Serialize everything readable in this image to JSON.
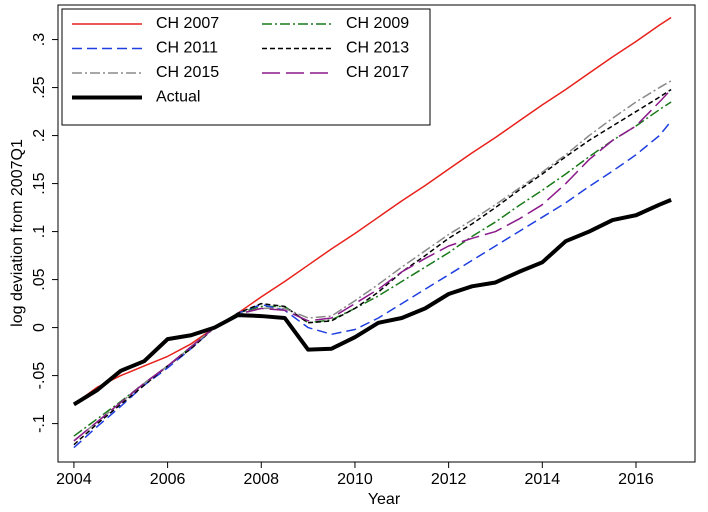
{
  "chart_data": {
    "type": "line",
    "x_label": "Year",
    "y_label": "log deviation from 2007Q1",
    "x": [
      2004,
      2004.5,
      2005,
      2005.5,
      2006,
      2006.5,
      2007,
      2007.5,
      2008,
      2008.5,
      2009,
      2009.5,
      2010,
      2010.5,
      2011,
      2011.5,
      2012,
      2012.5,
      2013,
      2013.5,
      2014,
      2014.5,
      2015,
      2015.5,
      2016,
      2016.5,
      2016.75
    ],
    "xlim": [
      2003.66,
      2017.26
    ],
    "xticks": [
      2004,
      2006,
      2008,
      2010,
      2012,
      2014,
      2016
    ],
    "ylim": [
      -0.14,
      0.336
    ],
    "yticks": [
      {
        "value": -0.1,
        "label": "-.1"
      },
      {
        "value": -0.05,
        "label": "-.05"
      },
      0,
      {
        "value": 0.05,
        "label": ".05"
      },
      {
        "value": 0.1,
        "label": ".1"
      },
      {
        "value": 0.15,
        "label": ".15"
      },
      {
        "value": 0.2,
        "label": ".2"
      },
      {
        "value": 0.25,
        "label": ".25"
      },
      {
        "value": 0.3,
        "label": ".3"
      }
    ],
    "legend": "top-left",
    "series": [
      {
        "name": "CH 2007",
        "color": "#e8211b",
        "linestyle": "solid",
        "width": 1.5,
        "values": [
          -0.08,
          -0.062,
          -0.05,
          -0.04,
          -0.03,
          -0.017,
          0.0,
          0.015,
          0.032,
          0.048,
          0.065,
          0.082,
          0.098,
          0.115,
          0.132,
          0.148,
          0.165,
          0.182,
          0.198,
          0.215,
          0.232,
          0.248,
          0.265,
          0.282,
          0.298,
          0.315,
          0.323
        ]
      },
      {
        "name": "CH 2009",
        "color": "#1a7a1a",
        "linestyle": "dashdot",
        "width": 1.5,
        "values": [
          -0.113,
          -0.095,
          -0.077,
          -0.058,
          -0.04,
          -0.02,
          0.0,
          0.015,
          0.022,
          0.022,
          0.005,
          0.008,
          0.02,
          0.033,
          0.048,
          0.063,
          0.078,
          0.095,
          0.11,
          0.127,
          0.143,
          0.16,
          0.178,
          0.195,
          0.21,
          0.227,
          0.235
        ]
      },
      {
        "name": "CH 2011",
        "color": "#1f3fe0",
        "linestyle": "dashed",
        "width": 1.5,
        "values": [
          -0.125,
          -0.103,
          -0.082,
          -0.06,
          -0.042,
          -0.022,
          0.0,
          0.015,
          0.024,
          0.018,
          0.0,
          -0.007,
          -0.002,
          0.01,
          0.025,
          0.04,
          0.055,
          0.07,
          0.085,
          0.1,
          0.115,
          0.13,
          0.147,
          0.163,
          0.18,
          0.2,
          0.215
        ]
      },
      {
        "name": "CH 2013",
        "color": "#000000",
        "linestyle": "shortdash",
        "width": 1.5,
        "values": [
          -0.122,
          -0.1,
          -0.08,
          -0.06,
          -0.04,
          -0.022,
          0.0,
          0.015,
          0.025,
          0.022,
          0.005,
          0.007,
          0.02,
          0.037,
          0.058,
          0.075,
          0.093,
          0.108,
          0.125,
          0.143,
          0.16,
          0.178,
          0.195,
          0.21,
          0.225,
          0.24,
          0.248
        ]
      },
      {
        "name": "CH 2015",
        "color": "#8a8a8a",
        "linestyle": "dashdot",
        "width": 1.5,
        "values": [
          -0.118,
          -0.098,
          -0.078,
          -0.058,
          -0.04,
          -0.02,
          0.0,
          0.014,
          0.02,
          0.02,
          0.01,
          0.012,
          0.028,
          0.045,
          0.063,
          0.08,
          0.097,
          0.112,
          0.128,
          0.145,
          0.162,
          0.18,
          0.2,
          0.218,
          0.235,
          0.25,
          0.257
        ]
      },
      {
        "name": "CH 2017",
        "color": "#8b1a8b",
        "linestyle": "longdash",
        "width": 1.5,
        "values": [
          -0.118,
          -0.098,
          -0.078,
          -0.058,
          -0.04,
          -0.02,
          0.0,
          0.014,
          0.02,
          0.018,
          0.007,
          0.01,
          0.025,
          0.04,
          0.058,
          0.072,
          0.085,
          0.093,
          0.1,
          0.113,
          0.128,
          0.15,
          0.175,
          0.195,
          0.21,
          0.235,
          0.248
        ]
      },
      {
        "name": "Actual",
        "color": "#000000",
        "linestyle": "solid",
        "width": 4,
        "values": [
          -0.08,
          -0.065,
          -0.045,
          -0.035,
          -0.012,
          -0.008,
          0.0,
          0.013,
          0.012,
          0.01,
          -0.023,
          -0.022,
          -0.01,
          0.005,
          0.01,
          0.02,
          0.035,
          0.043,
          0.047,
          0.058,
          0.068,
          0.09,
          0.1,
          0.112,
          0.117,
          0.128,
          0.133
        ]
      }
    ]
  }
}
